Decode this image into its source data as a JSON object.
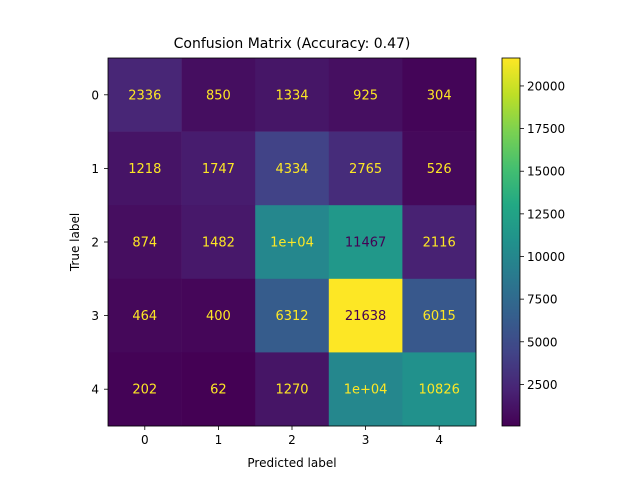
{
  "chart_data": {
    "type": "heatmap",
    "title": "Confusion Matrix (Accuracy: 0.47)",
    "xlabel": "Predicted label",
    "ylabel": "True label",
    "x_categories": [
      "0",
      "1",
      "2",
      "3",
      "4"
    ],
    "y_categories": [
      "0",
      "1",
      "2",
      "3",
      "4"
    ],
    "values": [
      [
        2336,
        850,
        1334,
        925,
        304
      ],
      [
        1218,
        1747,
        4334,
        2765,
        526
      ],
      [
        874,
        1482,
        10000,
        11467,
        2116
      ],
      [
        464,
        400,
        6312,
        21638,
        6015
      ],
      [
        202,
        62,
        1270,
        10000,
        10826
      ]
    ],
    "cell_labels": [
      [
        "2336",
        "850",
        "1334",
        "925",
        "304"
      ],
      [
        "1218",
        "1747",
        "4334",
        "2765",
        "526"
      ],
      [
        "874",
        "1482",
        "1e+04",
        "11467",
        "2116"
      ],
      [
        "464",
        "400",
        "6312",
        "21638",
        "6015"
      ],
      [
        "202",
        "62",
        "1270",
        "1e+04",
        "10826"
      ]
    ],
    "colormap": "viridis",
    "colorbar": {
      "range": [
        62,
        21638
      ],
      "ticks": [
        2500,
        5000,
        7500,
        10000,
        12500,
        15000,
        17500,
        20000
      ],
      "tick_labels": [
        "2500",
        "5000",
        "7500",
        "10000",
        "12500",
        "15000",
        "17500",
        "20000"
      ]
    }
  }
}
